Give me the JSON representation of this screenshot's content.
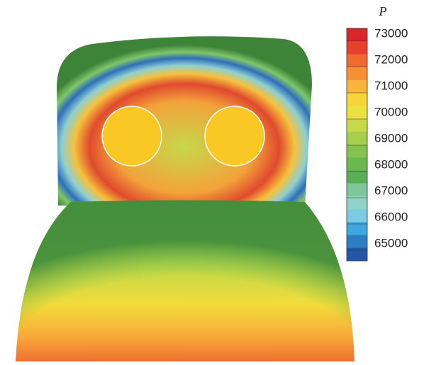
{
  "colorbar": {
    "label": "P",
    "ticks": [
      73000,
      72000,
      71000,
      70000,
      69000,
      68000,
      67000,
      66000,
      65000
    ],
    "colors": [
      "#d9262b",
      "#e8402e",
      "#f06a30",
      "#f69035",
      "#f9b43a",
      "#f7d53a",
      "#e9e23c",
      "#c8d948",
      "#a6cf4d",
      "#86c24f",
      "#6bb84f",
      "#5aae55",
      "#7fc59a",
      "#92d3c6",
      "#7ccbe3",
      "#3ea7dd",
      "#2b7fc0",
      "#2457a7"
    ]
  }
}
